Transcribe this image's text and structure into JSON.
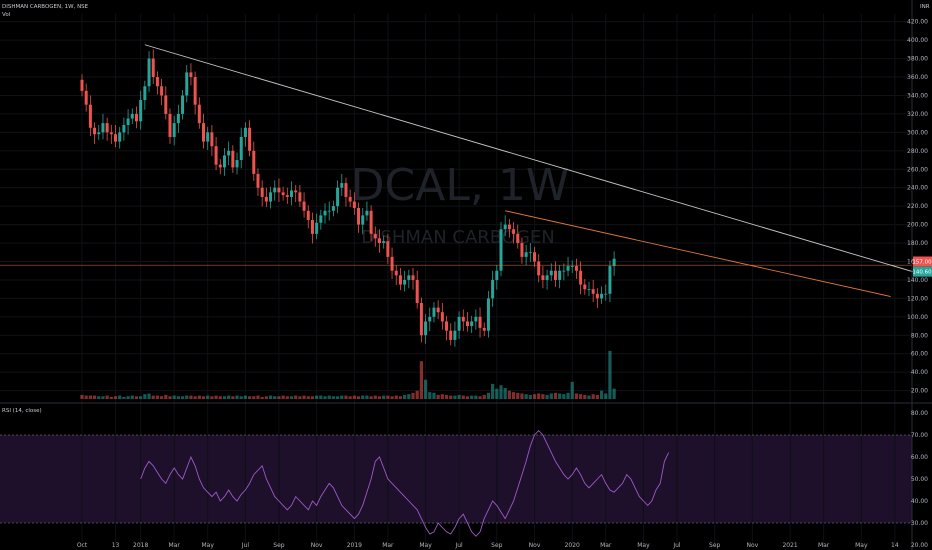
{
  "header": {
    "symbol_line": "DISHMAN CARBOGEN, 1W, NSE",
    "volume_label": "Vol",
    "rsi_label": "RSI (14, close)",
    "currency": "INR"
  },
  "watermark": {
    "ticker": "DCAL, 1W",
    "name": "DISHMAN CARBOGEN"
  },
  "colors": {
    "up": "#26a69a",
    "down": "#ef5350",
    "trendline": "#c9c9c9",
    "orange": "#e0763a",
    "rsi": "#9c5bc9",
    "rsi_band": "#1e0f2a"
  },
  "chart_data": [
    {
      "type": "candlestick",
      "title": "DISHMAN CARBOGEN, 1W, NSE",
      "ylim": [
        0,
        420
      ],
      "yticks": [
        20,
        40,
        60,
        80,
        100,
        120,
        140,
        160,
        180,
        200,
        220,
        240,
        260,
        280,
        300,
        320,
        340,
        360,
        380,
        400,
        420
      ],
      "ytick_labels": [
        "20.00",
        "40.00",
        "60.00",
        "80.00",
        "100.00",
        "120.00",
        "140.00",
        "160.00",
        "180.00",
        "200.00",
        "220.00",
        "240.00",
        "260.00",
        "280.00",
        "300.00",
        "320.00",
        "340.00",
        "360.00",
        "380.00",
        "400.00",
        "420.00"
      ],
      "xtick_labels": [
        "Oct",
        "13",
        "2018",
        "Mar",
        "May",
        "Jul",
        "Sep",
        "Nov",
        "2019",
        "Mar",
        "May",
        "Jul",
        "Sep",
        "Nov",
        "2020",
        "Mar",
        "May",
        "Jul",
        "Sep",
        "Nov",
        "2021",
        "Mar",
        "May",
        "14"
      ],
      "xtick_week": [
        0,
        8,
        14,
        22,
        30,
        39,
        47,
        56,
        65,
        73,
        82,
        90,
        99,
        108,
        117,
        125,
        134,
        142,
        151,
        160,
        169,
        177,
        186,
        194
      ],
      "closes": [
        345,
        330,
        305,
        298,
        300,
        310,
        300,
        298,
        290,
        300,
        308,
        315,
        320,
        312,
        335,
        350,
        380,
        360,
        350,
        340,
        320,
        295,
        310,
        320,
        340,
        365,
        360,
        330,
        310,
        290,
        300,
        285,
        265,
        262,
        275,
        280,
        262,
        270,
        295,
        305,
        280,
        255,
        240,
        230,
        225,
        235,
        240,
        235,
        232,
        230,
        237,
        235,
        225,
        215,
        205,
        190,
        202,
        210,
        215,
        215,
        220,
        240,
        245,
        230,
        225,
        218,
        200,
        210,
        215,
        190,
        185,
        180,
        182,
        165,
        150,
        145,
        135,
        140,
        145,
        140,
        115,
        80,
        95,
        100,
        110,
        105,
        95,
        85,
        75,
        85,
        100,
        95,
        90,
        95,
        100,
        88,
        85,
        120,
        140,
        150,
        195,
        200,
        195,
        190,
        180,
        165,
        170,
        170,
        160,
        145,
        140,
        145,
        150,
        140,
        150,
        150,
        155,
        155,
        150,
        135,
        130,
        130,
        125,
        120,
        125,
        125,
        155,
        163
      ],
      "volume_ylim": [
        0,
        80
      ],
      "volumes": [
        6,
        5,
        5,
        5,
        4,
        4,
        5,
        3,
        4,
        5,
        3,
        4,
        5,
        4,
        4,
        7,
        8,
        5,
        5,
        4,
        6,
        4,
        5,
        4,
        4,
        5,
        5,
        4,
        5,
        4,
        5,
        4,
        5,
        4,
        4,
        5,
        4,
        5,
        4,
        5,
        4,
        4,
        5,
        3,
        4,
        5,
        4,
        4,
        5,
        4,
        4,
        5,
        4,
        5,
        4,
        4,
        5,
        5,
        4,
        5,
        4,
        4,
        5,
        5,
        4,
        5,
        4,
        5,
        5,
        4,
        5,
        4,
        5,
        5,
        4,
        5,
        4,
        6,
        7,
        9,
        12,
        55,
        28,
        10,
        9,
        6,
        7,
        6,
        5,
        5,
        6,
        5,
        4,
        5,
        5,
        4,
        6,
        9,
        22,
        15,
        20,
        16,
        12,
        10,
        9,
        8,
        7,
        6,
        7,
        8,
        7,
        6,
        8,
        9,
        8,
        7,
        9,
        25,
        8,
        7,
        6,
        5,
        7,
        6,
        12,
        8,
        70,
        15
      ],
      "trendlines": [
        {
          "from_week": 15,
          "from_price": 395,
          "to_week": 199,
          "to_price": 148
        },
        {
          "from_week": 101,
          "from_price": 215,
          "to_week": 193,
          "to_price": 122
        }
      ],
      "hline_price": 156,
      "price_labels": [
        "157.00",
        "140.60"
      ]
    },
    {
      "type": "line",
      "title": "RSI (14, close)",
      "ylim": [
        20,
        80
      ],
      "yticks": [
        20,
        30,
        40,
        50,
        60,
        70,
        80
      ],
      "ytick_labels": [
        "20.00",
        "30.00",
        "40.00",
        "50.00",
        "60.00",
        "70.00",
        "80.00"
      ],
      "bands": [
        30,
        70
      ],
      "start_week": 14,
      "values": [
        50,
        55,
        58,
        56,
        53,
        50,
        48,
        52,
        55,
        52,
        50,
        55,
        60,
        56,
        50,
        46,
        44,
        42,
        44,
        40,
        42,
        45,
        42,
        40,
        43,
        45,
        48,
        52,
        54,
        56,
        50,
        46,
        42,
        40,
        38,
        36,
        38,
        42,
        40,
        38,
        36,
        40,
        38,
        42,
        45,
        48,
        46,
        42,
        38,
        36,
        34,
        32,
        34,
        38,
        44,
        50,
        58,
        60,
        55,
        50,
        48,
        46,
        44,
        42,
        40,
        38,
        36,
        32,
        28,
        25,
        26,
        30,
        28,
        26,
        25,
        28,
        32,
        34,
        30,
        26,
        24,
        26,
        32,
        36,
        40,
        38,
        35,
        32,
        36,
        40,
        46,
        52,
        58,
        65,
        70,
        72,
        70,
        66,
        62,
        58,
        55,
        52,
        50,
        52,
        55,
        52,
        48,
        46,
        48,
        50,
        52,
        48,
        45,
        44,
        46,
        48,
        52,
        50,
        46,
        42,
        40,
        38,
        40,
        45,
        48,
        58,
        62
      ]
    }
  ]
}
